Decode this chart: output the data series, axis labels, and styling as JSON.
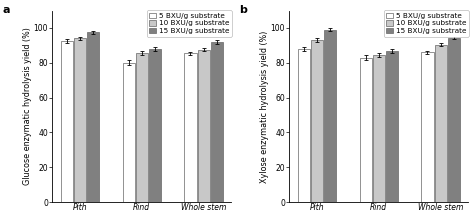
{
  "panel_a": {
    "label": "a",
    "ylabel": "Glucose enzymatic hydrolysis yield (%)",
    "categories": [
      "Pith",
      "Rind",
      "Whole stem"
    ],
    "series": [
      {
        "name": "5 BXU/g substrate",
        "color": "#ffffff",
        "edgecolor": "#666666",
        "values": [
          92.5,
          80.0,
          85.5
        ],
        "errors": [
          1.0,
          1.5,
          0.8
        ]
      },
      {
        "name": "10 BXU/g substrate",
        "color": "#c8c8c8",
        "edgecolor": "#666666",
        "values": [
          94.0,
          85.5,
          87.5
        ],
        "errors": [
          1.0,
          1.2,
          0.8
        ]
      },
      {
        "name": "15 BXU/g substrate",
        "color": "#808080",
        "edgecolor": "#666666",
        "values": [
          97.5,
          88.0,
          92.0
        ],
        "errors": [
          0.8,
          1.0,
          1.0
        ]
      }
    ],
    "ylim": [
      0,
      110
    ],
    "yticks": [
      0,
      20,
      40,
      60,
      80,
      100
    ]
  },
  "panel_b": {
    "label": "b",
    "ylabel": "Xylose enzymatic hydrolysis yield (%)",
    "categories": [
      "Pith",
      "Rind",
      "Whole stem"
    ],
    "series": [
      {
        "name": "5 BXU/g substrate",
        "color": "#ffffff",
        "edgecolor": "#666666",
        "values": [
          88.0,
          83.0,
          86.0
        ],
        "errors": [
          1.2,
          1.5,
          0.8
        ]
      },
      {
        "name": "10 BXU/g substrate",
        "color": "#c8c8c8",
        "edgecolor": "#666666",
        "values": [
          93.0,
          84.5,
          90.5
        ],
        "errors": [
          1.0,
          1.0,
          0.8
        ]
      },
      {
        "name": "15 BXU/g substrate",
        "color": "#808080",
        "edgecolor": "#666666",
        "values": [
          99.0,
          87.0,
          94.5
        ],
        "errors": [
          0.8,
          1.2,
          1.0
        ]
      }
    ],
    "ylim": [
      0,
      110
    ],
    "yticks": [
      0,
      20,
      40,
      60,
      80,
      100
    ]
  },
  "bar_width": 0.18,
  "tick_label_size": 5.5,
  "legend_font_size": 5.2,
  "axis_label_size": 5.8,
  "panel_label_size": 8.0
}
